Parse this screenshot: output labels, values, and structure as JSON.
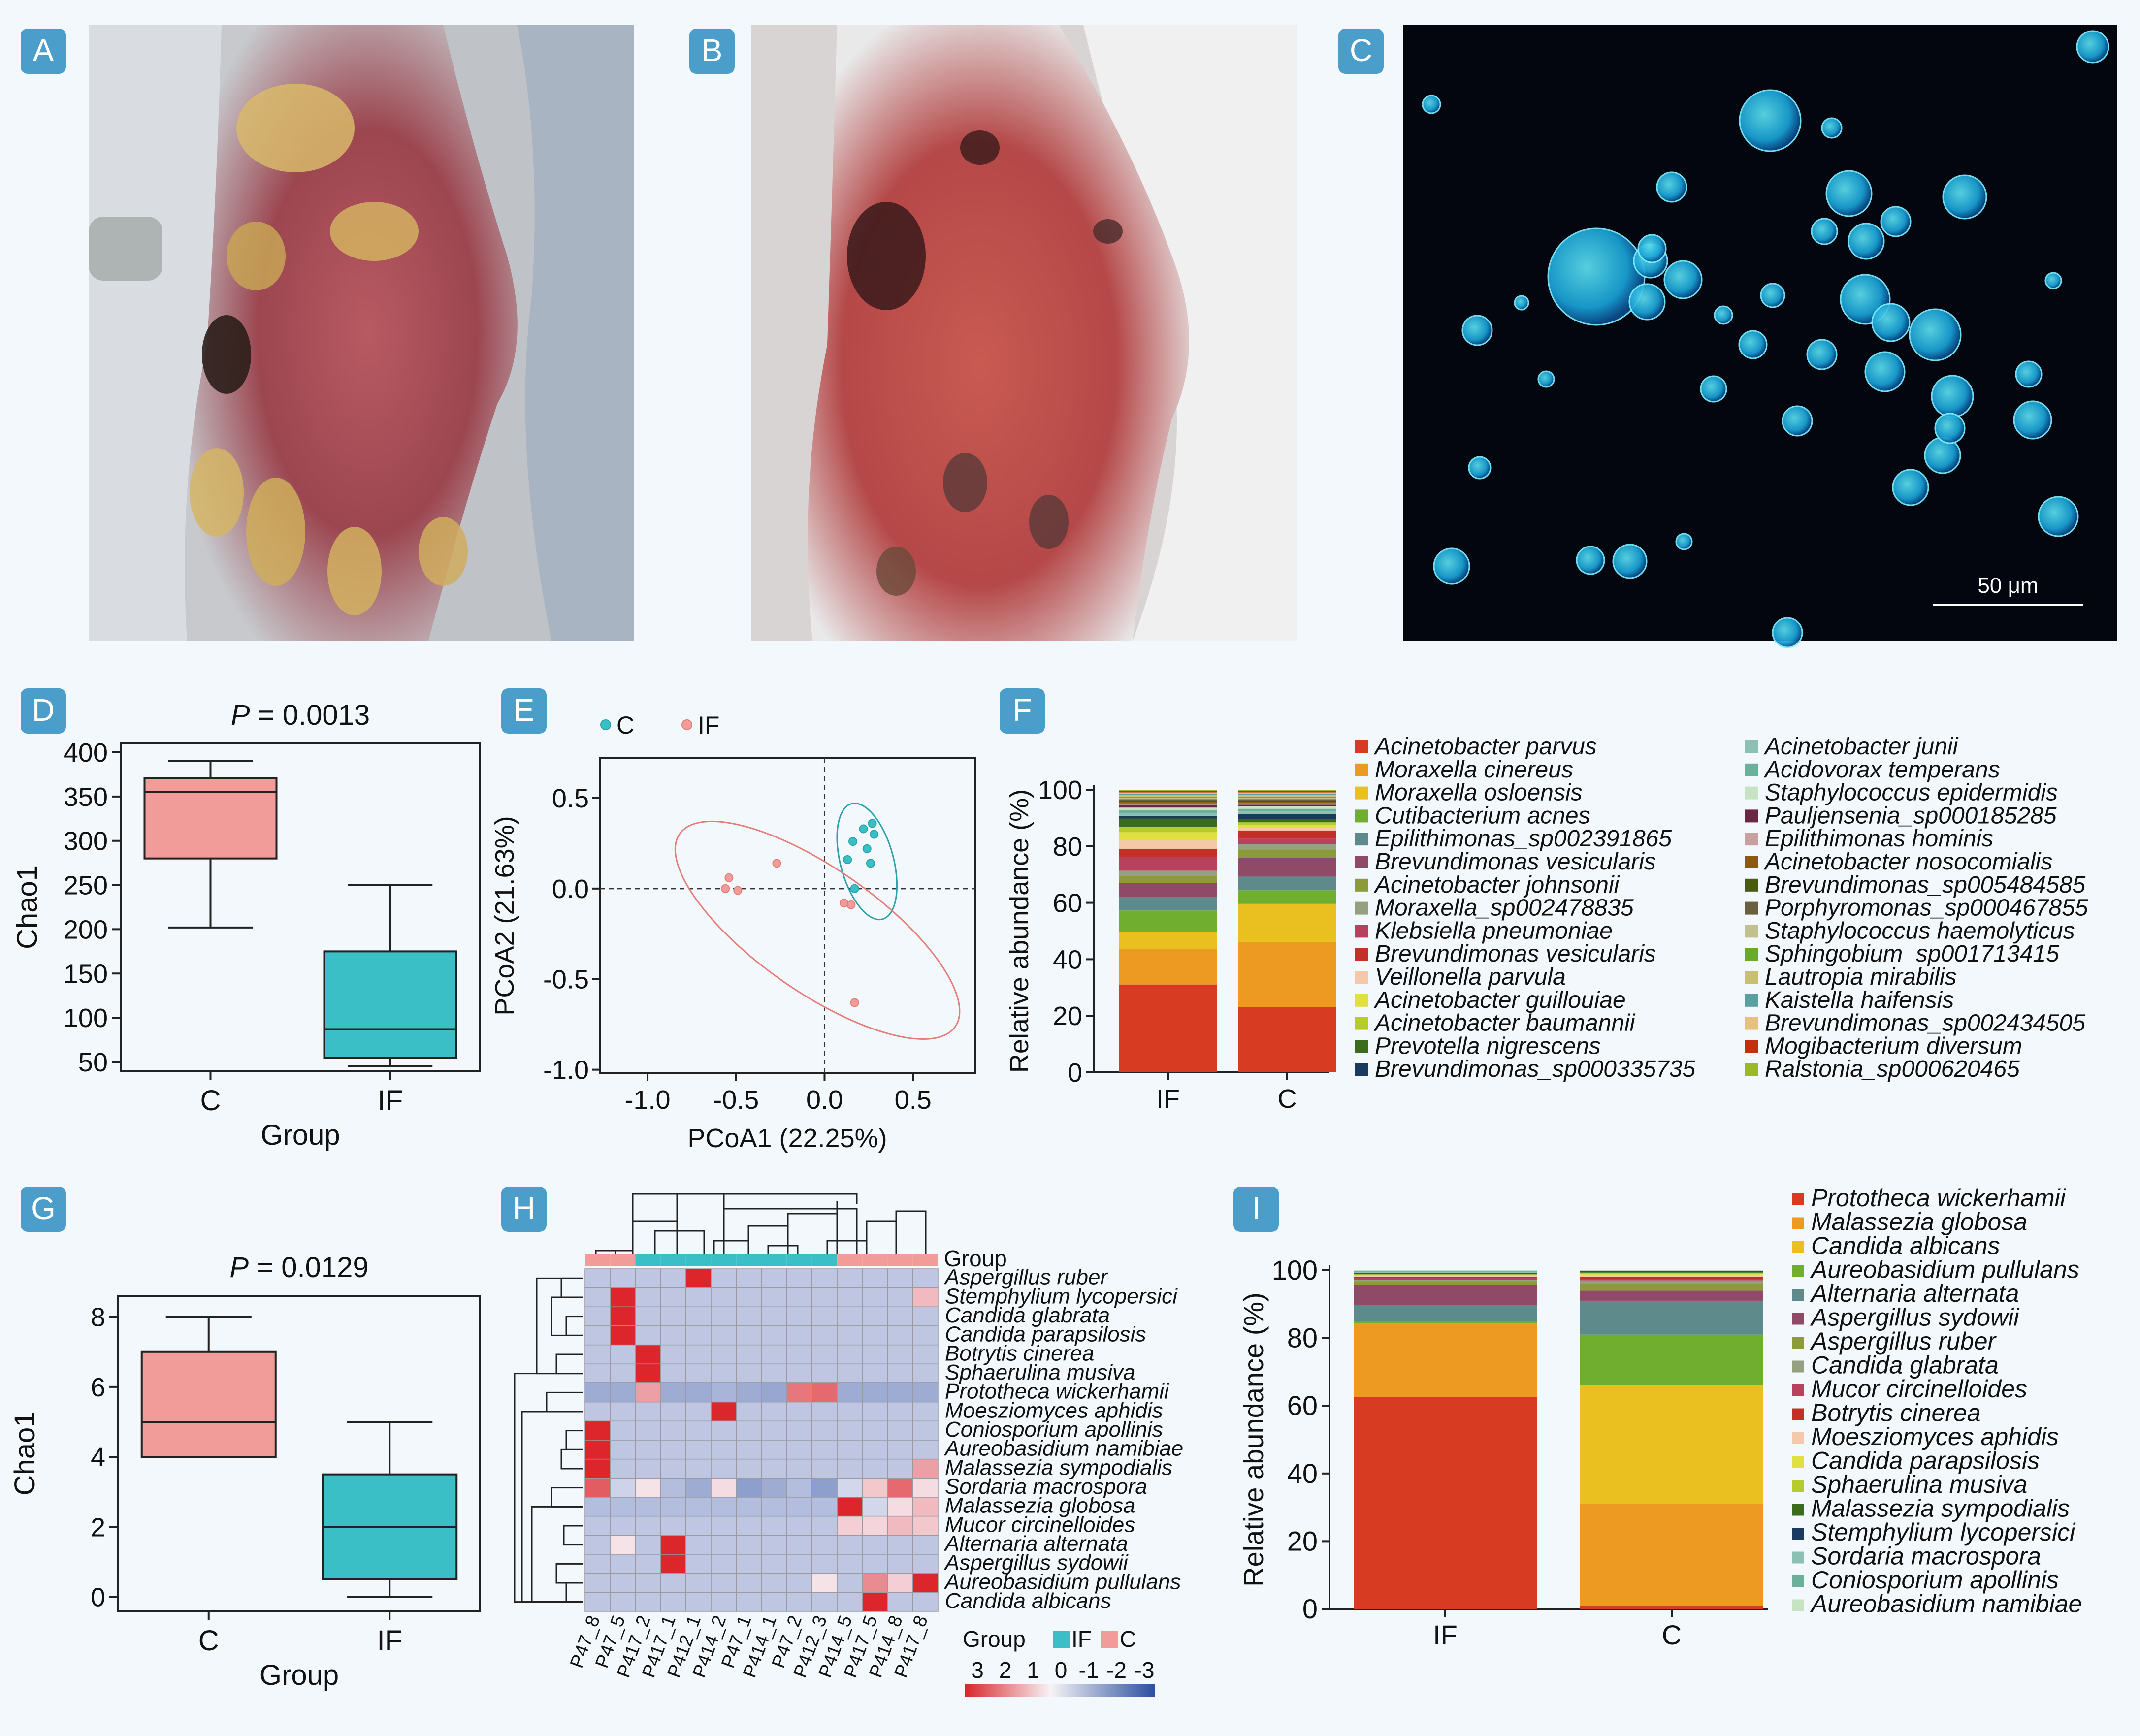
{
  "colors": {
    "page_bg": "#f3f8fc",
    "badge": "#4a9ec9",
    "pink": "#f29c9a",
    "teal": "#3bbfc6",
    "pink_stroke": "#e47c78",
    "teal_stroke": "#2aa2a8"
  },
  "panel_labels": {
    "A": "A",
    "B": "B",
    "C": "C",
    "D": "D",
    "E": "E",
    "F": "F",
    "G": "G",
    "H": "H",
    "I": "I"
  },
  "photos": {
    "A": {
      "content": "photo of dorsal hand with thick crusted yellow plaques over red skin"
    },
    "B": {
      "content": "photo of hand after treatment with red skin and dark scabs"
    },
    "C": {
      "content": "fluorescence micrograph of round blue-green sporangia on dark background",
      "scale_bar": "50 μm"
    }
  },
  "chart_data": [
    {
      "id": "D",
      "type": "box",
      "title_p": "P",
      "title_rest": " = 0.0013",
      "xlabel": "Group",
      "ylabel": "Chao1",
      "categories": [
        "C",
        "IF"
      ],
      "ylim": [
        40,
        410
      ],
      "yticks": [
        50,
        100,
        150,
        200,
        250,
        300,
        350,
        400
      ],
      "boxes": [
        {
          "group": "C",
          "whisker_low": 202,
          "q1": 280,
          "median": 355,
          "q3": 371,
          "whisker_high": 390,
          "color": "pink"
        },
        {
          "group": "IF",
          "whisker_low": 45,
          "q1": 55,
          "median": 87,
          "q3": 175,
          "whisker_high": 250,
          "color": "teal"
        }
      ]
    },
    {
      "id": "E",
      "type": "scatter",
      "xlabel": "PCoA1 (22.25%)",
      "ylabel": "PCoA2 (21.63%)",
      "xlim": [
        -1.27,
        0.85
      ],
      "ylim": [
        -1.02,
        0.72
      ],
      "xticks": [
        -1.0,
        -0.5,
        0.0,
        0.5
      ],
      "xtick_labels": [
        "-1.0",
        "-0.5",
        "0.0",
        "0.5"
      ],
      "yticks": [
        0.5,
        0.0,
        -0.5,
        -1.0
      ],
      "ytick_labels": [
        "0.5",
        "0.0",
        "-0.5",
        "-1.0"
      ],
      "legend": [
        {
          "name": "C",
          "color": "teal"
        },
        {
          "name": "IF",
          "color": "pink"
        }
      ],
      "series": [
        {
          "name": "C",
          "color": "teal",
          "points": [
            [
              0.22,
              0.33
            ],
            [
              0.27,
              0.36
            ],
            [
              0.28,
              0.3
            ],
            [
              0.16,
              0.26
            ],
            [
              0.24,
              0.22
            ],
            [
              0.13,
              0.16
            ],
            [
              0.26,
              0.14
            ],
            [
              0.17,
              0.0
            ]
          ]
        },
        {
          "name": "IF",
          "color": "pink",
          "points": [
            [
              -0.27,
              0.14
            ],
            [
              -0.54,
              0.06
            ],
            [
              -0.56,
              0.0
            ],
            [
              -0.49,
              -0.01
            ],
            [
              0.11,
              -0.08
            ],
            [
              0.15,
              -0.09
            ],
            [
              0.17,
              -0.63
            ]
          ]
        }
      ],
      "ellipses": [
        {
          "series": "C",
          "cx": 0.24,
          "cy": 0.15,
          "rx": 0.15,
          "ry": 0.33,
          "angle": 15
        },
        {
          "series": "IF",
          "cx": -0.04,
          "cy": -0.23,
          "rx": 0.95,
          "ry": 0.34,
          "angle": -35
        }
      ]
    },
    {
      "id": "F",
      "type": "stacked_bar",
      "ylabel": "Relative abundance (%)",
      "categories": [
        "IF",
        "C"
      ],
      "ylim": [
        0,
        100
      ],
      "yticks": [
        0,
        20,
        40,
        60,
        80,
        100
      ],
      "legend": [
        "Acinetobacter parvus",
        "Moraxella cinereus",
        "Moraxella osloensis",
        "Cutibacterium acnes",
        "Epilithimonas_sp002391865",
        "Brevundimonas vesicularis",
        "Acinetobacter johnsonii",
        "Moraxella_sp002478835",
        "Klebsiella pneumoniae",
        "Brevundimonas vesicularis",
        "Veillonella parvula",
        "Acinetobacter guillouiae",
        "Acinetobacter baumannii",
        "Prevotella nigrescens",
        "Brevundimonas_sp000335735",
        "Acinetobacter junii",
        "Acidovorax temperans",
        "Staphylococcus epidermidis",
        "Pauljensenia_sp000185285",
        "Epilithimonas hominis",
        "Acinetobacter nosocomialis",
        "Brevundimonas_sp005484585",
        "Porphyromonas_sp000467855",
        "Staphylococcus haemolyticus",
        "Sphingobium_sp001713415",
        "Lautropia mirabilis",
        "Kaistella haifensis",
        "Brevundimonas_sp002434505",
        "Mogibacterium diversum",
        "Ralstonia_sp000620465"
      ],
      "colors": [
        "#d73b22",
        "#ec9a22",
        "#e9c020",
        "#6fae2e",
        "#5f8a8c",
        "#8f4a68",
        "#8d9a3a",
        "#94a080",
        "#b8425e",
        "#c23028",
        "#f4c8a8",
        "#e0e040",
        "#b6cc2a",
        "#3a6c1c",
        "#1a3a60",
        "#8cc0b4",
        "#6ab09a",
        "#c6e4c4",
        "#6a2840",
        "#c8a0a0",
        "#8a5a10",
        "#4a5a10",
        "#6a6040",
        "#c0c090",
        "#6aaa2a",
        "#c8c070",
        "#5aa0a0",
        "#e6c080",
        "#c03010",
        "#9ab828"
      ],
      "values": {
        "IF": [
          32,
          13,
          6,
          8,
          5,
          5,
          2.5,
          2,
          5,
          3,
          3,
          3,
          2,
          3,
          1,
          1,
          1,
          1,
          1,
          0.5,
          0.5,
          0.5,
          0.5,
          0.5,
          0.5,
          0.5,
          0.5,
          0.5,
          0.5,
          0.5
        ],
        "C": [
          24,
          24,
          14,
          5,
          5,
          7,
          3,
          2,
          2,
          3,
          1,
          1,
          1,
          1,
          2,
          1,
          1,
          1,
          0.5,
          0.5,
          0.5,
          0.5,
          0.5,
          0.5,
          0.5,
          0.5,
          0.5,
          0.5,
          0.5,
          0.5
        ]
      }
    },
    {
      "id": "G",
      "type": "box",
      "title_p": "P",
      "title_rest": " = 0.0129",
      "xlabel": "Group",
      "ylabel": "Chao1",
      "categories": [
        "C",
        "IF"
      ],
      "ylim": [
        -0.4,
        8.6
      ],
      "yticks": [
        0,
        2,
        4,
        6,
        8
      ],
      "boxes": [
        {
          "group": "C",
          "whisker_low": 4,
          "q1": 4,
          "median": 5,
          "q3": 7,
          "whisker_high": 8,
          "color": "pink"
        },
        {
          "group": "IF",
          "whisker_low": 0,
          "q1": 0.5,
          "median": 2,
          "q3": 3.5,
          "whisker_high": 5,
          "color": "teal"
        }
      ]
    },
    {
      "id": "H",
      "type": "heatmap",
      "group_label": "Group",
      "group_legend_title": "Group",
      "group_legend": [
        {
          "name": "IF",
          "color": "teal"
        },
        {
          "name": "C",
          "color": "pink"
        }
      ],
      "scale_labels": [
        "3",
        "2",
        "1",
        "0",
        "-1",
        "-2",
        "-3"
      ],
      "columns": [
        "P47_8",
        "P47_5",
        "P417_2",
        "P417_1",
        "P412_1",
        "P414_2",
        "P47_1",
        "P414_1",
        "P47_2",
        "P412_3",
        "P414_5",
        "P417_5",
        "P414_8",
        "P417_8"
      ],
      "column_groups": [
        "C",
        "C",
        "IF",
        "IF",
        "IF",
        "IF",
        "IF",
        "IF",
        "IF",
        "IF",
        "C",
        "C",
        "C",
        "C"
      ],
      "rows": [
        "Aspergillus ruber",
        "Stemphylium lycopersici",
        "Candida glabrata",
        "Candida parapsilosis",
        "Botrytis cinerea",
        "Sphaerulina musiva",
        "Prototheca wickerhamii",
        "Moesziomyces aphidis",
        "Coniosporium apollinis",
        "Aureobasidium namibiae",
        "Malassezia sympodialis",
        "Sordaria macrospora",
        "Malassezia globosa",
        "Mucor circinelloides",
        "Alternaria alternata",
        "Aspergillus sydowii",
        "Aureobasidium pullulans",
        "Candida albicans"
      ],
      "values": [
        [
          -0.6,
          -0.6,
          -0.6,
          -0.6,
          3,
          -0.6,
          -0.6,
          -0.6,
          -0.6,
          -0.6,
          -0.6,
          -0.6,
          -0.6,
          -0.6
        ],
        [
          -0.6,
          3,
          -0.6,
          -0.6,
          -0.6,
          -0.6,
          -0.6,
          -0.6,
          -0.6,
          -0.6,
          -0.6,
          -0.6,
          -0.6,
          0.8
        ],
        [
          -0.6,
          3,
          -0.6,
          -0.6,
          -0.6,
          -0.6,
          -0.6,
          -0.6,
          -0.6,
          -0.6,
          -0.6,
          -0.6,
          -0.6,
          -0.6
        ],
        [
          -0.6,
          3,
          -0.6,
          -0.6,
          -0.6,
          -0.6,
          -0.6,
          -0.6,
          -0.6,
          -0.6,
          -0.6,
          -0.6,
          -0.6,
          -0.6
        ],
        [
          -0.6,
          -0.6,
          3,
          -0.6,
          -0.6,
          -0.6,
          -0.6,
          -0.6,
          -0.6,
          -0.6,
          -0.6,
          -0.6,
          -0.6,
          -0.6
        ],
        [
          -0.6,
          -0.6,
          3,
          -0.6,
          -0.6,
          -0.6,
          -0.6,
          -0.6,
          -0.6,
          -0.6,
          -0.6,
          -0.6,
          -0.6,
          -0.6
        ],
        [
          -1.2,
          -1.2,
          1.2,
          -1.2,
          -1.2,
          -1.0,
          -1.2,
          -1.3,
          1.8,
          2,
          -1.2,
          -1.2,
          -1.2,
          -1.2
        ],
        [
          -0.6,
          -0.6,
          -0.6,
          -0.6,
          -0.6,
          3,
          -0.6,
          -0.6,
          -0.6,
          -0.6,
          -0.6,
          -0.6,
          -0.6,
          -0.6
        ],
        [
          3,
          -0.6,
          -0.6,
          -0.6,
          -0.6,
          -0.6,
          -0.6,
          -0.6,
          -0.6,
          -0.6,
          -0.6,
          -0.6,
          -0.6,
          -0.6
        ],
        [
          3,
          -0.6,
          -0.6,
          -0.6,
          -0.6,
          -0.6,
          -0.6,
          -0.6,
          -0.6,
          -0.6,
          -0.6,
          -0.6,
          -0.6,
          -0.6
        ],
        [
          3,
          -0.6,
          -0.6,
          -0.6,
          -0.6,
          -0.6,
          -0.6,
          -0.6,
          -0.6,
          -0.6,
          -0.6,
          -0.6,
          -0.6,
          1.2
        ],
        [
          2.2,
          -0.3,
          0.2,
          -0.8,
          -1.2,
          0.3,
          -1.5,
          -1.2,
          -0.8,
          -1.5,
          -0.2,
          0.6,
          2,
          0.3
        ],
        [
          -0.8,
          -0.8,
          -0.8,
          -0.8,
          -0.8,
          -0.8,
          -0.8,
          -0.8,
          -0.8,
          -0.8,
          3,
          -0.2,
          0.3,
          0.8
        ],
        [
          -0.6,
          -0.6,
          -0.6,
          -0.6,
          -0.6,
          -0.6,
          -0.6,
          -0.6,
          -0.6,
          -0.6,
          0.5,
          0.4,
          0.8,
          0.6
        ],
        [
          -0.6,
          0.2,
          -0.6,
          3,
          -0.6,
          -0.6,
          -0.6,
          -0.6,
          -0.6,
          -0.6,
          -0.6,
          -0.6,
          -0.6,
          -0.6
        ],
        [
          -0.6,
          -0.6,
          -0.6,
          3,
          -0.6,
          -0.6,
          -0.6,
          -0.6,
          -0.6,
          -0.6,
          -0.6,
          -0.6,
          -0.6,
          -0.6
        ],
        [
          -0.6,
          -0.6,
          -0.6,
          -0.6,
          -0.6,
          -0.6,
          -0.6,
          -0.6,
          -0.6,
          0.2,
          -0.6,
          1.5,
          0.5,
          3
        ],
        [
          -0.6,
          -0.6,
          -0.6,
          -0.6,
          -0.6,
          -0.6,
          -0.6,
          -0.6,
          -0.6,
          -0.6,
          -0.6,
          3,
          -0.6,
          -0.6
        ]
      ]
    },
    {
      "id": "I",
      "type": "stacked_bar",
      "ylabel": "Relative abundance (%)",
      "categories": [
        "IF",
        "C"
      ],
      "ylim": [
        0,
        100
      ],
      "yticks": [
        0,
        20,
        40,
        60,
        80,
        100
      ],
      "legend": [
        "Prototheca wickerhamii",
        "Malassezia globosa",
        "Candida albicans",
        "Aureobasidium pullulans",
        "Alternaria alternata",
        "Aspergillus sydowii",
        "Aspergillus ruber",
        "Candida glabrata",
        "Mucor circinelloides",
        "Botrytis cinerea",
        "Moesziomyces aphidis",
        "Candida parapsilosis",
        "Sphaerulina musiva",
        "Malassezia sympodialis",
        "Stemphylium lycopersici",
        "Sordaria macrospora",
        "Coniosporium apollinis",
        "Aureobasidium namibiae"
      ],
      "colors": [
        "#d73b22",
        "#ec9a22",
        "#e9c020",
        "#6fae2e",
        "#5f8a8c",
        "#8f4a68",
        "#8d9a3a",
        "#94a080",
        "#b8425e",
        "#c23028",
        "#f4c8a8",
        "#e0e040",
        "#b6cc2a",
        "#3a6c1c",
        "#1a3a60",
        "#8cc0b4",
        "#6ab09a",
        "#c6e4c4"
      ],
      "values": {
        "IF": [
          63,
          22,
          0,
          0.5,
          5,
          6,
          1,
          0.5,
          0.5,
          0.3,
          0.3,
          0.3,
          0.2,
          0.2,
          0.2,
          0.2,
          0.3,
          0.3
        ],
        "C": [
          1,
          30,
          35,
          15,
          10,
          3,
          2,
          1,
          0.5,
          0.5,
          0.5,
          0.5,
          0.3,
          0.2,
          0.2,
          0.1,
          0.1,
          0.1
        ]
      }
    }
  ]
}
